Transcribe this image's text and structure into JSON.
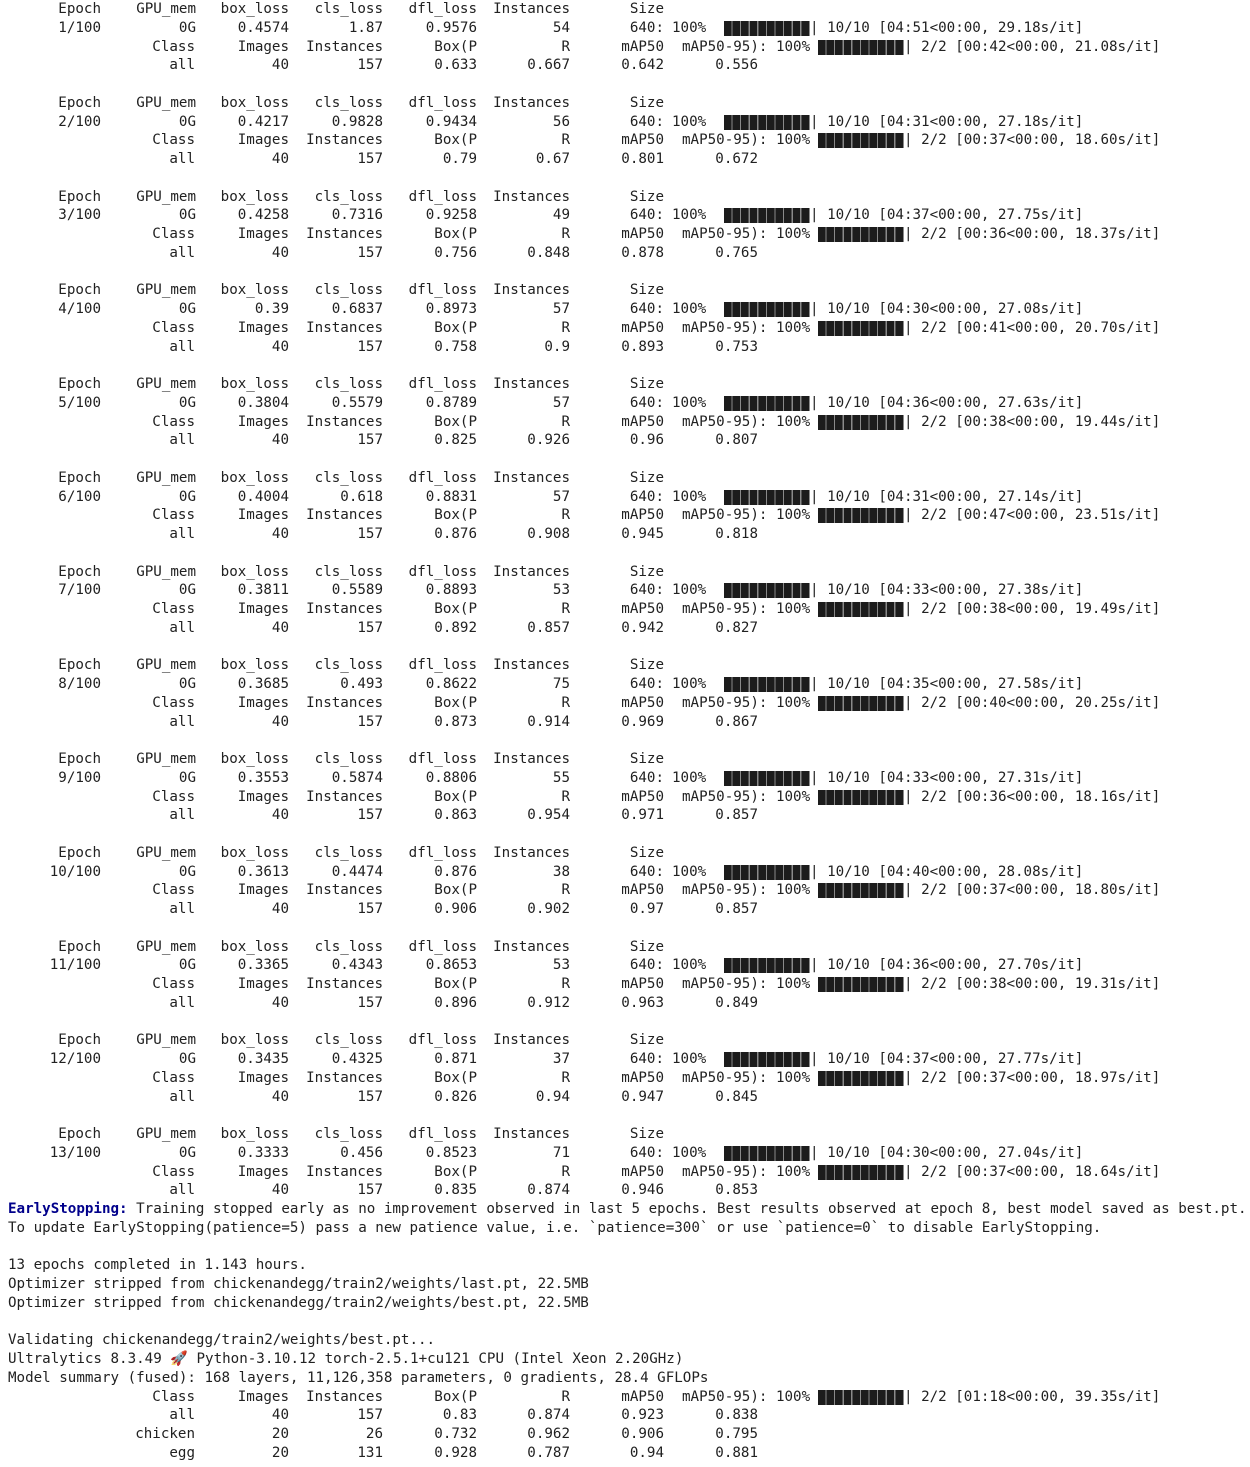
{
  "epoch_header": [
    "Epoch",
    "GPU_mem",
    "box_loss",
    "cls_loss",
    "dfl_loss",
    "Instances",
    "Size"
  ],
  "val_header": [
    "Class",
    "Images",
    "Instances",
    "Box(P",
    "R",
    "mAP50",
    "mAP50-95): 100%"
  ],
  "epochs": [
    {
      "epoch": "1/100",
      "gpu": "0G",
      "box": "0.4574",
      "cls": "1.87",
      "dfl": "0.9576",
      "inst": "54",
      "size": "640:",
      "pct": "100%",
      "train_prog": "| 10/10 [04:51<00:00, 29.18s/it]",
      "images": "40",
      "vinst": "157",
      "P": "0.633",
      "R": "0.667",
      "map50": "0.642",
      "map": "0.556",
      "val_prog": "| 2/2 [00:42<00:00, 21.08s/it]"
    },
    {
      "epoch": "2/100",
      "gpu": "0G",
      "box": "0.4217",
      "cls": "0.9828",
      "dfl": "0.9434",
      "inst": "56",
      "size": "640:",
      "pct": "100%",
      "train_prog": "| 10/10 [04:31<00:00, 27.18s/it]",
      "images": "40",
      "vinst": "157",
      "P": "0.79",
      "R": "0.67",
      "map50": "0.801",
      "map": "0.672",
      "val_prog": "| 2/2 [00:37<00:00, 18.60s/it]"
    },
    {
      "epoch": "3/100",
      "gpu": "0G",
      "box": "0.4258",
      "cls": "0.7316",
      "dfl": "0.9258",
      "inst": "49",
      "size": "640:",
      "pct": "100%",
      "train_prog": "| 10/10 [04:37<00:00, 27.75s/it]",
      "images": "40",
      "vinst": "157",
      "P": "0.756",
      "R": "0.848",
      "map50": "0.878",
      "map": "0.765",
      "val_prog": "| 2/2 [00:36<00:00, 18.37s/it]"
    },
    {
      "epoch": "4/100",
      "gpu": "0G",
      "box": "0.39",
      "cls": "0.6837",
      "dfl": "0.8973",
      "inst": "57",
      "size": "640:",
      "pct": "100%",
      "train_prog": "| 10/10 [04:30<00:00, 27.08s/it]",
      "images": "40",
      "vinst": "157",
      "P": "0.758",
      "R": "0.9",
      "map50": "0.893",
      "map": "0.753",
      "val_prog": "| 2/2 [00:41<00:00, 20.70s/it]"
    },
    {
      "epoch": "5/100",
      "gpu": "0G",
      "box": "0.3804",
      "cls": "0.5579",
      "dfl": "0.8789",
      "inst": "57",
      "size": "640:",
      "pct": "100%",
      "train_prog": "| 10/10 [04:36<00:00, 27.63s/it]",
      "images": "40",
      "vinst": "157",
      "P": "0.825",
      "R": "0.926",
      "map50": "0.96",
      "map": "0.807",
      "val_prog": "| 2/2 [00:38<00:00, 19.44s/it]"
    },
    {
      "epoch": "6/100",
      "gpu": "0G",
      "box": "0.4004",
      "cls": "0.618",
      "dfl": "0.8831",
      "inst": "57",
      "size": "640:",
      "pct": "100%",
      "train_prog": "| 10/10 [04:31<00:00, 27.14s/it]",
      "images": "40",
      "vinst": "157",
      "P": "0.876",
      "R": "0.908",
      "map50": "0.945",
      "map": "0.818",
      "val_prog": "| 2/2 [00:47<00:00, 23.51s/it]"
    },
    {
      "epoch": "7/100",
      "gpu": "0G",
      "box": "0.3811",
      "cls": "0.5589",
      "dfl": "0.8893",
      "inst": "53",
      "size": "640:",
      "pct": "100%",
      "train_prog": "| 10/10 [04:33<00:00, 27.38s/it]",
      "images": "40",
      "vinst": "157",
      "P": "0.892",
      "R": "0.857",
      "map50": "0.942",
      "map": "0.827",
      "val_prog": "| 2/2 [00:38<00:00, 19.49s/it]"
    },
    {
      "epoch": "8/100",
      "gpu": "0G",
      "box": "0.3685",
      "cls": "0.493",
      "dfl": "0.8622",
      "inst": "75",
      "size": "640:",
      "pct": "100%",
      "train_prog": "| 10/10 [04:35<00:00, 27.58s/it]",
      "images": "40",
      "vinst": "157",
      "P": "0.873",
      "R": "0.914",
      "map50": "0.969",
      "map": "0.867",
      "val_prog": "| 2/2 [00:40<00:00, 20.25s/it]"
    },
    {
      "epoch": "9/100",
      "gpu": "0G",
      "box": "0.3553",
      "cls": "0.5874",
      "dfl": "0.8806",
      "inst": "55",
      "size": "640:",
      "pct": "100%",
      "train_prog": "| 10/10 [04:33<00:00, 27.31s/it]",
      "images": "40",
      "vinst": "157",
      "P": "0.863",
      "R": "0.954",
      "map50": "0.971",
      "map": "0.857",
      "val_prog": "| 2/2 [00:36<00:00, 18.16s/it]"
    },
    {
      "epoch": "10/100",
      "gpu": "0G",
      "box": "0.3613",
      "cls": "0.4474",
      "dfl": "0.876",
      "inst": "38",
      "size": "640:",
      "pct": "100%",
      "train_prog": "| 10/10 [04:40<00:00, 28.08s/it]",
      "images": "40",
      "vinst": "157",
      "P": "0.906",
      "R": "0.902",
      "map50": "0.97",
      "map": "0.857",
      "val_prog": "| 2/2 [00:37<00:00, 18.80s/it]"
    },
    {
      "epoch": "11/100",
      "gpu": "0G",
      "box": "0.3365",
      "cls": "0.4343",
      "dfl": "0.8653",
      "inst": "53",
      "size": "640:",
      "pct": "100%",
      "train_prog": "| 10/10 [04:36<00:00, 27.70s/it]",
      "images": "40",
      "vinst": "157",
      "P": "0.896",
      "R": "0.912",
      "map50": "0.963",
      "map": "0.849",
      "val_prog": "| 2/2 [00:38<00:00, 19.31s/it]"
    },
    {
      "epoch": "12/100",
      "gpu": "0G",
      "box": "0.3435",
      "cls": "0.4325",
      "dfl": "0.871",
      "inst": "37",
      "size": "640:",
      "pct": "100%",
      "train_prog": "| 10/10 [04:37<00:00, 27.77s/it]",
      "images": "40",
      "vinst": "157",
      "P": "0.826",
      "R": "0.94",
      "map50": "0.947",
      "map": "0.845",
      "val_prog": "| 2/2 [00:37<00:00, 18.97s/it]"
    },
    {
      "epoch": "13/100",
      "gpu": "0G",
      "box": "0.3333",
      "cls": "0.456",
      "dfl": "0.8523",
      "inst": "71",
      "size": "640:",
      "pct": "100%",
      "train_prog": "| 10/10 [04:30<00:00, 27.04s/it]",
      "images": "40",
      "vinst": "157",
      "P": "0.835",
      "R": "0.874",
      "map50": "0.946",
      "map": "0.853",
      "val_prog": "| 2/2 [00:37<00:00, 18.64s/it]"
    }
  ],
  "early_stopping": {
    "label": "EarlyStopping:",
    "message": " Training stopped early as no improvement observed in last 5 epochs. Best results observed at epoch 8, best model saved as best.pt.",
    "hint": "To update EarlyStopping(patience=5) pass a new patience value, i.e. `patience=300` or use `patience=0` to disable EarlyStopping."
  },
  "summary_lines": [
    "",
    "13 epochs completed in 1.143 hours.",
    "Optimizer stripped from chickenandegg/train2/weights/last.pt, 22.5MB",
    "Optimizer stripped from chickenandegg/train2/weights/best.pt, 22.5MB",
    "",
    "Validating chickenandegg/train2/weights/best.pt...",
    "Ultralytics 8.3.49 🚀 Python-3.10.12 torch-2.5.1+cu121 CPU (Intel Xeon 2.20GHz)",
    "Model summary (fused): 168 layers, 11,126,358 parameters, 0 gradients, 28.4 GFLOPs"
  ],
  "final_val_progress": "| 2/2 [01:18<00:00, 39.35s/it]",
  "final_results": [
    {
      "cls": "all",
      "images": "40",
      "inst": "157",
      "P": "0.83",
      "R": "0.874",
      "map50": "0.923",
      "map": "0.838"
    },
    {
      "cls": "chicken",
      "images": "20",
      "inst": "26",
      "P": "0.732",
      "R": "0.962",
      "map50": "0.906",
      "map": "0.795"
    },
    {
      "cls": "egg",
      "images": "20",
      "inst": "131",
      "P": "0.928",
      "R": "0.787",
      "map50": "0.94",
      "map": "0.881"
    }
  ]
}
